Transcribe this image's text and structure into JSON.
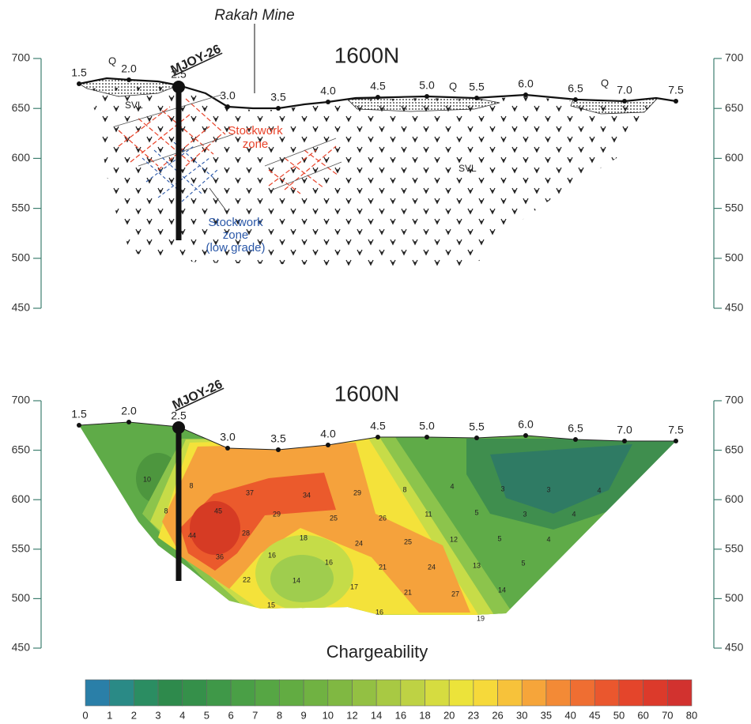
{
  "top": {
    "title": "1600N",
    "mine": "Rakah Mine",
    "drillhole": "MJOY-26",
    "stations": [
      "1.5",
      "2.0",
      "2.5",
      "3.0",
      "3.5",
      "4.0",
      "4.5",
      "5.0",
      "5.5",
      "6.0",
      "6.5",
      "7.0",
      "7.5"
    ],
    "elevation_ticks": [
      700,
      650,
      600,
      550,
      500,
      450
    ],
    "labels": {
      "q": [
        "Q",
        "Q",
        "Q"
      ],
      "svl": [
        "SVL",
        "SVL"
      ],
      "stockwork": [
        "Stockwork",
        "zone"
      ],
      "stockwork_low_grade": [
        "Stockwork",
        "zone",
        "(low grade)"
      ]
    }
  },
  "bottom": {
    "title": "1600N",
    "drillhole": "MJOY-26",
    "stations": [
      "1.5",
      "2.0",
      "2.5",
      "3.0",
      "3.5",
      "4.0",
      "4.5",
      "5.0",
      "5.5",
      "6.0",
      "6.5",
      "7.0",
      "7.5"
    ],
    "elevation_ticks": [
      700,
      650,
      600,
      550,
      500,
      450
    ],
    "contour_labels": [
      10,
      8,
      8,
      37,
      34,
      29,
      8,
      4,
      3,
      3,
      4,
      45,
      29,
      26,
      11,
      5,
      3,
      4,
      44,
      28,
      18,
      25,
      24,
      25,
      12,
      5,
      4,
      36,
      16,
      16,
      21,
      24,
      13,
      5,
      22,
      14,
      17,
      21,
      27,
      14,
      15,
      16,
      19
    ]
  },
  "legend": {
    "title": "Chargeability",
    "ticks": [
      0,
      1,
      2,
      3,
      4,
      5,
      6,
      7,
      8,
      9,
      10,
      12,
      14,
      16,
      18,
      20,
      23,
      26,
      30,
      35,
      40,
      45,
      50,
      60,
      70,
      80
    ]
  }
}
